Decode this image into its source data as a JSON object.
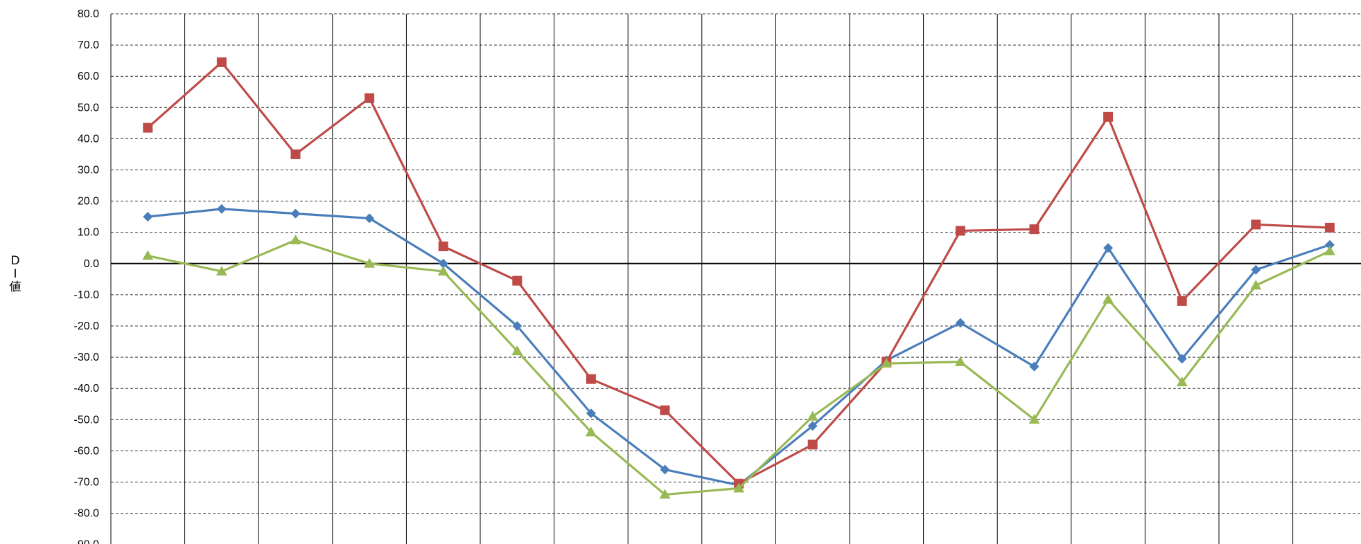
{
  "chart_data": {
    "type": "line",
    "ylabel": "DI値",
    "ylim": [
      -90,
      80
    ],
    "ytick_step": 10,
    "grid": true,
    "x_count": 17,
    "series": [
      {
        "color": "#4a7ebb",
        "marker": "diamond",
        "values": [
          15,
          17.5,
          16,
          14.5,
          0,
          -20,
          -48,
          -66,
          -71,
          -52,
          -31,
          -19,
          -33,
          5,
          -30.5,
          -2,
          6
        ]
      },
      {
        "color": "#be4b48",
        "marker": "square",
        "values": [
          43.5,
          64.5,
          35,
          53,
          5.5,
          -5.5,
          -37,
          -47,
          -70.5,
          -58,
          -31.5,
          10.5,
          11,
          47,
          -12,
          12.5,
          11.5
        ]
      },
      {
        "color": "#98b954",
        "marker": "triangle",
        "values": [
          2.5,
          -2.5,
          7.5,
          0,
          -2.5,
          -28,
          -54,
          -74,
          -72,
          -49,
          -32,
          -31.5,
          -50,
          -11.5,
          -38,
          -7,
          4
        ]
      }
    ]
  }
}
